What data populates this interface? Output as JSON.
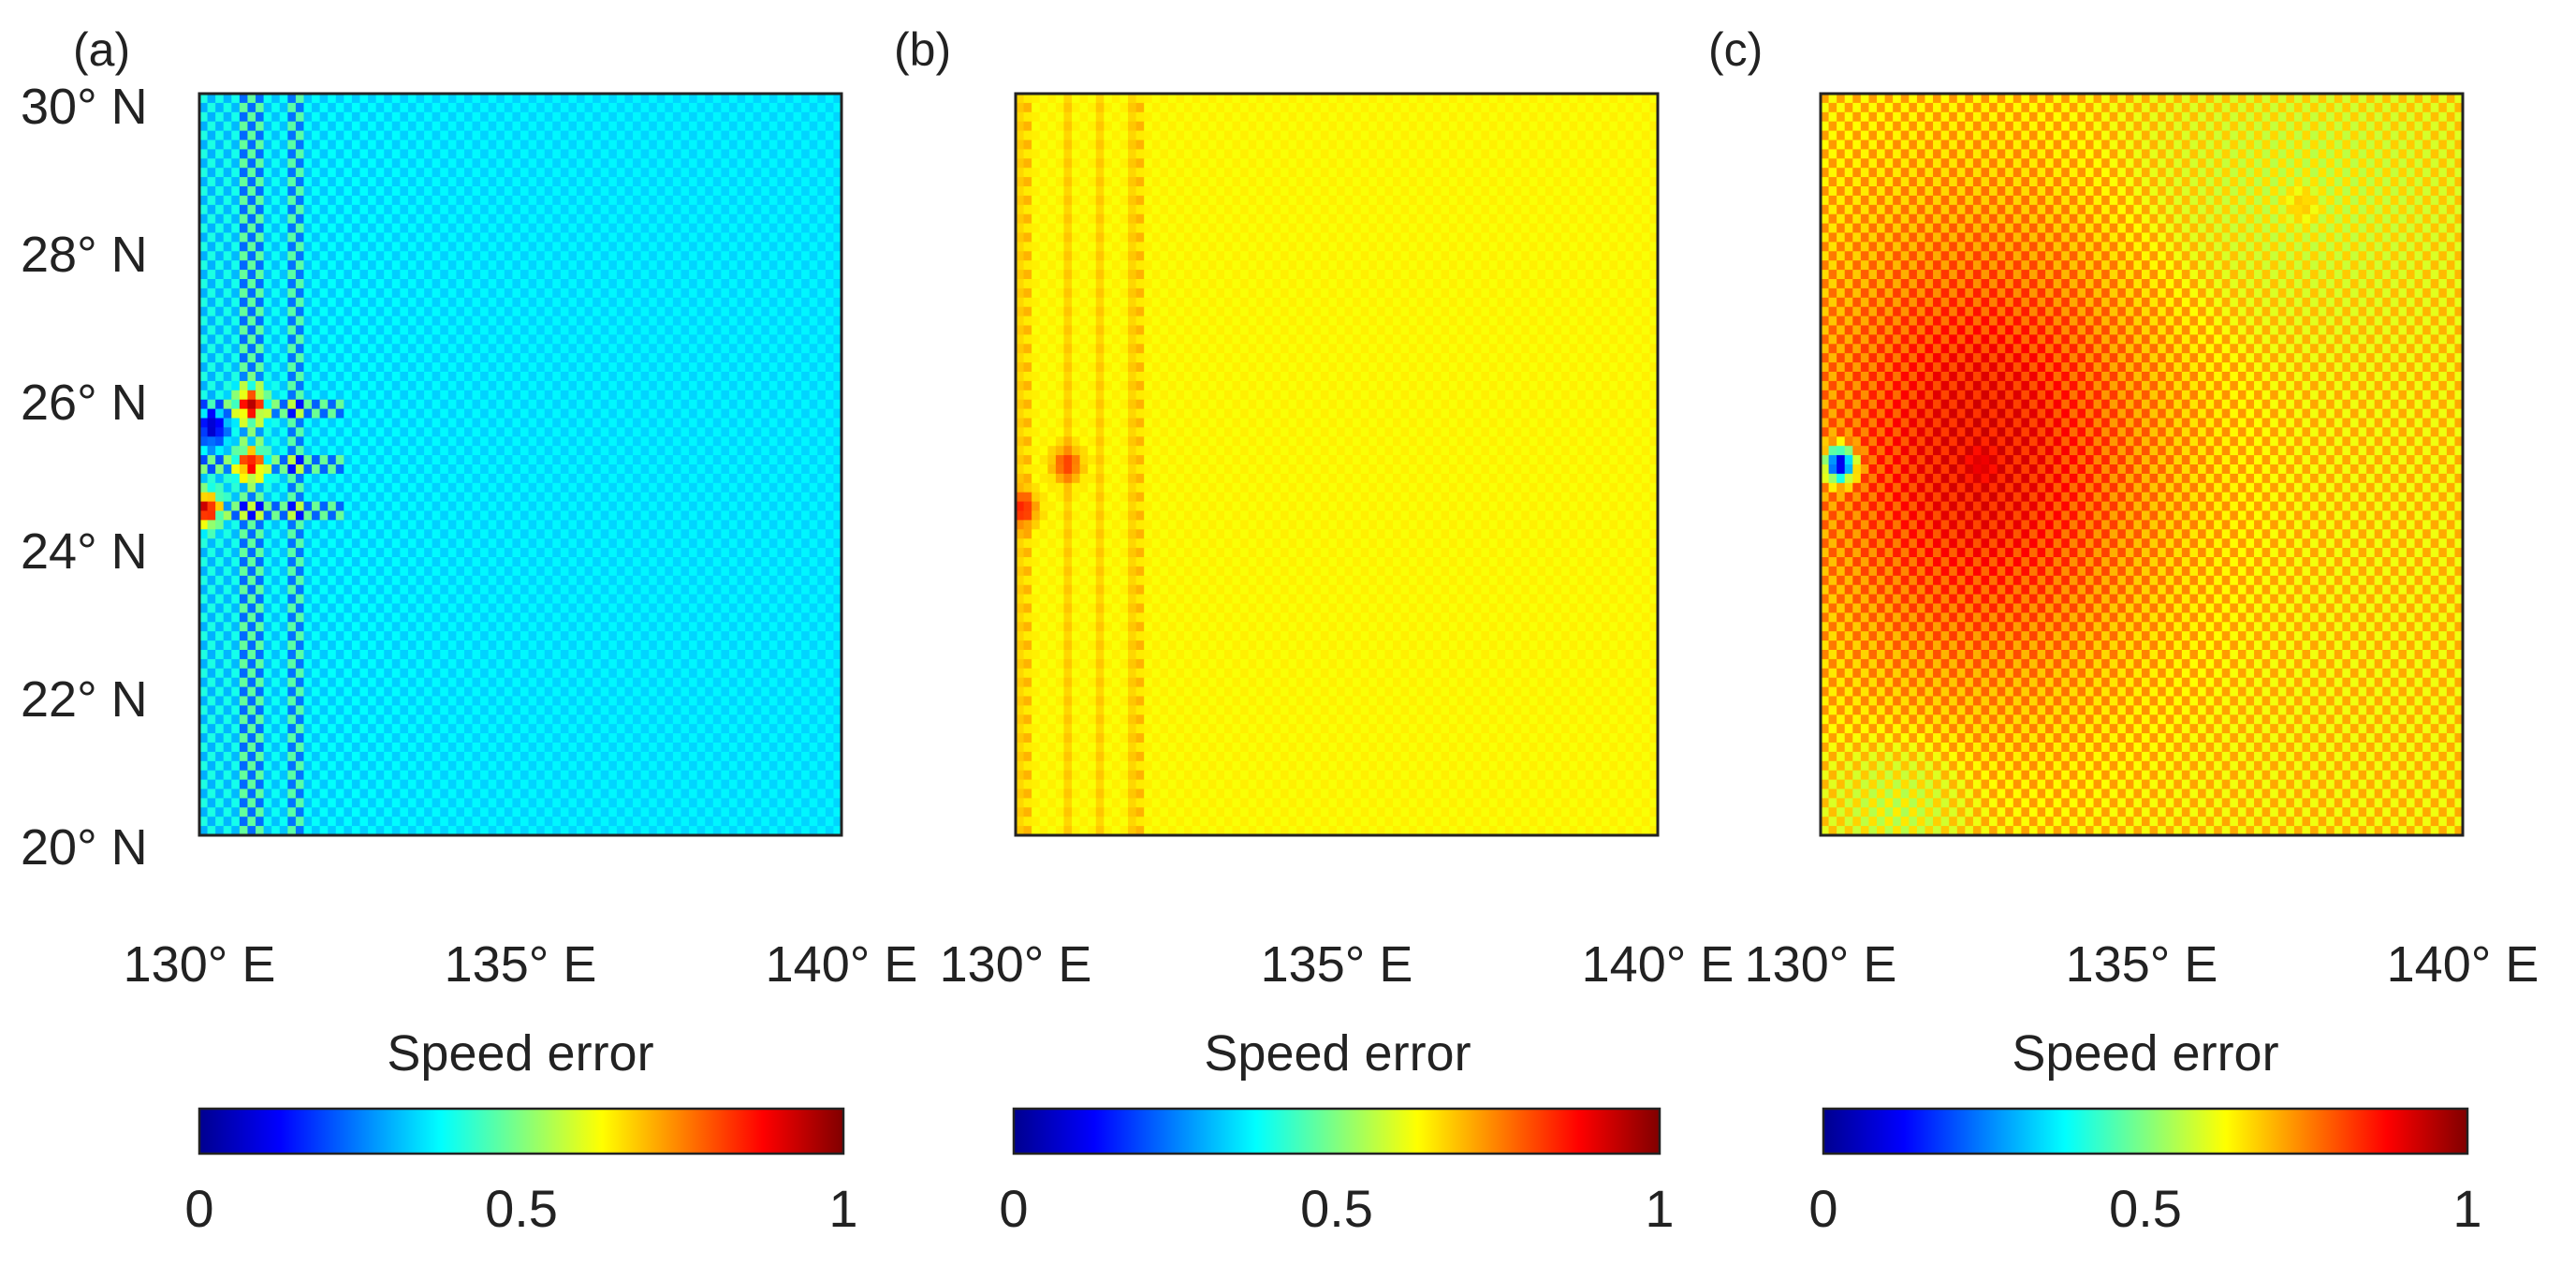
{
  "figure": {
    "colormap": "jet",
    "colormap_stops": [
      "#00008f",
      "#0000ff",
      "#0080ff",
      "#00ffff",
      "#80ff80",
      "#ffff00",
      "#ff8000",
      "#ff0000",
      "#800000"
    ]
  },
  "chart_data": [
    {
      "type": "heatmap",
      "panel_label": "(a)",
      "title": "",
      "xlabel": "",
      "ylabel": "",
      "xlim": [
        130,
        140
      ],
      "ylim": [
        20,
        30
      ],
      "x_ticks": [
        130,
        135,
        140
      ],
      "x_tick_labels": [
        "130° E",
        "135° E",
        "140° E"
      ],
      "y_ticks": [
        20,
        22,
        24,
        26,
        28,
        30
      ],
      "y_tick_labels": [
        "20° N",
        "22° N",
        "24° N",
        "26° N",
        "28° N",
        "30° N"
      ],
      "field": "Speed error",
      "grid_size": [
        80,
        80
      ],
      "typical_value": 0.35,
      "value_range": [
        0.05,
        1.0
      ],
      "hotspots": [
        {
          "lon": 130.2,
          "lat": 25.5,
          "value": 0.05
        },
        {
          "lon": 130.8,
          "lat": 25.8,
          "value": 0.95
        },
        {
          "lon": 130.8,
          "lat": 25.0,
          "value": 0.9
        },
        {
          "lon": 130.1,
          "lat": 24.4,
          "value": 0.95
        }
      ],
      "colorbar": {
        "label": "Speed error",
        "range": [
          0,
          1
        ],
        "ticks": [
          0,
          0.5,
          1
        ],
        "tick_labels": [
          "0",
          "0.5",
          "1"
        ]
      }
    },
    {
      "type": "heatmap",
      "panel_label": "(b)",
      "title": "",
      "xlabel": "",
      "ylabel": "",
      "xlim": [
        130,
        140
      ],
      "ylim": [
        20,
        30
      ],
      "x_ticks": [
        130,
        135,
        140
      ],
      "x_tick_labels": [
        "130° E",
        "135° E",
        "140° E"
      ],
      "field": "Speed error",
      "grid_size": [
        80,
        80
      ],
      "typical_value": 0.62,
      "value_range": [
        0.6,
        0.85
      ],
      "hotspots": [
        {
          "lon": 130.8,
          "lat": 25.0,
          "value": 0.82
        },
        {
          "lon": 130.1,
          "lat": 24.4,
          "value": 0.85
        }
      ],
      "colorbar": {
        "label": "Speed error",
        "range": [
          0,
          1
        ],
        "ticks": [
          0,
          0.5,
          1
        ],
        "tick_labels": [
          "0",
          "0.5",
          "1"
        ]
      }
    },
    {
      "type": "heatmap",
      "panel_label": "(c)",
      "title": "",
      "xlabel": "",
      "ylabel": "",
      "xlim": [
        130,
        140
      ],
      "ylim": [
        20,
        30
      ],
      "x_ticks": [
        130,
        135,
        140
      ],
      "x_tick_labels": [
        "130° E",
        "135° E",
        "140° E"
      ],
      "field": "Speed error",
      "grid_size": [
        80,
        80
      ],
      "typical_value": 0.72,
      "value_range": [
        0.05,
        0.95
      ],
      "hotspots": [
        {
          "lon": 132.5,
          "lat": 25.0,
          "value": 0.9
        },
        {
          "lon": 130.3,
          "lat": 25.0,
          "value": 0.05
        },
        {
          "lon": 137.5,
          "lat": 28.5,
          "value": 0.68
        }
      ],
      "colorbar": {
        "label": "Speed error",
        "range": [
          0,
          1
        ],
        "ticks": [
          0,
          0.5,
          1
        ],
        "tick_labels": [
          "0",
          "0.5",
          "1"
        ]
      }
    }
  ]
}
